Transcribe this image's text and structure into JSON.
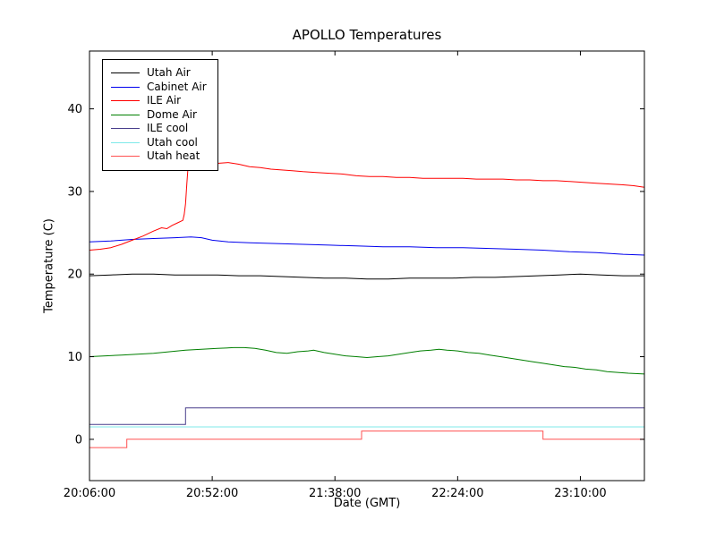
{
  "chart_data": {
    "type": "line",
    "title": "APOLLO Temperatures",
    "xlabel": "Date (GMT)",
    "ylabel": "Temperature (C)",
    "x_unit": "minutes after 20:06:00",
    "xlim": [
      0,
      208
    ],
    "ylim": [
      -5,
      47
    ],
    "grid": false,
    "legend_position": "upper left",
    "xticks": [
      {
        "value": 0,
        "label": "20:06:00"
      },
      {
        "value": 46,
        "label": "20:52:00"
      },
      {
        "value": 92,
        "label": "21:38:00"
      },
      {
        "value": 138,
        "label": "22:24:00"
      },
      {
        "value": 184,
        "label": "23:10:00"
      }
    ],
    "yticks": [
      {
        "value": 0,
        "label": "0"
      },
      {
        "value": 10,
        "label": "10"
      },
      {
        "value": 20,
        "label": "20"
      },
      {
        "value": 30,
        "label": "30"
      },
      {
        "value": 40,
        "label": "40"
      }
    ],
    "series": [
      {
        "name": "Utah Air",
        "color": "#000000",
        "points": [
          [
            0,
            19.8
          ],
          [
            8,
            19.9
          ],
          [
            16,
            20
          ],
          [
            24,
            20
          ],
          [
            32,
            19.9
          ],
          [
            40,
            19.9
          ],
          [
            48,
            19.9
          ],
          [
            56,
            19.8
          ],
          [
            64,
            19.8
          ],
          [
            72,
            19.7
          ],
          [
            80,
            19.6
          ],
          [
            88,
            19.5
          ],
          [
            96,
            19.5
          ],
          [
            104,
            19.4
          ],
          [
            112,
            19.4
          ],
          [
            120,
            19.5
          ],
          [
            128,
            19.5
          ],
          [
            136,
            19.5
          ],
          [
            144,
            19.6
          ],
          [
            152,
            19.6
          ],
          [
            160,
            19.7
          ],
          [
            168,
            19.8
          ],
          [
            176,
            19.9
          ],
          [
            184,
            20
          ],
          [
            192,
            19.9
          ],
          [
            200,
            19.8
          ],
          [
            208,
            19.8
          ]
        ]
      },
      {
        "name": "Cabinet Air",
        "color": "#0000ee",
        "points": [
          [
            0,
            23.9
          ],
          [
            8,
            24
          ],
          [
            16,
            24.2
          ],
          [
            24,
            24.3
          ],
          [
            32,
            24.4
          ],
          [
            38,
            24.5
          ],
          [
            42,
            24.4
          ],
          [
            46,
            24.1
          ],
          [
            52,
            23.9
          ],
          [
            60,
            23.8
          ],
          [
            70,
            23.7
          ],
          [
            80,
            23.6
          ],
          [
            90,
            23.5
          ],
          [
            100,
            23.4
          ],
          [
            110,
            23.3
          ],
          [
            120,
            23.3
          ],
          [
            130,
            23.2
          ],
          [
            140,
            23.2
          ],
          [
            150,
            23.1
          ],
          [
            160,
            23
          ],
          [
            170,
            22.9
          ],
          [
            180,
            22.7
          ],
          [
            190,
            22.6
          ],
          [
            200,
            22.4
          ],
          [
            208,
            22.3
          ]
        ]
      },
      {
        "name": "ILE Air",
        "color": "#ff0000",
        "points": [
          [
            0,
            22.9
          ],
          [
            4,
            23
          ],
          [
            8,
            23.2
          ],
          [
            12,
            23.6
          ],
          [
            16,
            24.1
          ],
          [
            20,
            24.6
          ],
          [
            24,
            25.2
          ],
          [
            27,
            25.6
          ],
          [
            29,
            25.5
          ],
          [
            31,
            25.9
          ],
          [
            33,
            26.2
          ],
          [
            35,
            26.5
          ],
          [
            35.5,
            27.2
          ],
          [
            36,
            28.5
          ],
          [
            36.5,
            31
          ],
          [
            37,
            33.2
          ],
          [
            38,
            34
          ],
          [
            40,
            33.7
          ],
          [
            44,
            33.5
          ],
          [
            48,
            33.4
          ],
          [
            52,
            33.5
          ],
          [
            56,
            33.3
          ],
          [
            60,
            33
          ],
          [
            64,
            32.9
          ],
          [
            68,
            32.7
          ],
          [
            72,
            32.6
          ],
          [
            76,
            32.5
          ],
          [
            80,
            32.4
          ],
          [
            85,
            32.3
          ],
          [
            90,
            32.2
          ],
          [
            95,
            32.1
          ],
          [
            100,
            31.9
          ],
          [
            105,
            31.8
          ],
          [
            110,
            31.8
          ],
          [
            115,
            31.7
          ],
          [
            120,
            31.7
          ],
          [
            125,
            31.6
          ],
          [
            130,
            31.6
          ],
          [
            135,
            31.6
          ],
          [
            140,
            31.6
          ],
          [
            145,
            31.5
          ],
          [
            150,
            31.5
          ],
          [
            155,
            31.5
          ],
          [
            160,
            31.4
          ],
          [
            165,
            31.4
          ],
          [
            170,
            31.3
          ],
          [
            175,
            31.3
          ],
          [
            180,
            31.2
          ],
          [
            185,
            31.1
          ],
          [
            190,
            31
          ],
          [
            195,
            30.9
          ],
          [
            200,
            30.8
          ],
          [
            204,
            30.7
          ],
          [
            208,
            30.5
          ]
        ]
      },
      {
        "name": "Dome Air",
        "color": "#007f00",
        "points": [
          [
            0,
            10
          ],
          [
            6,
            10.1
          ],
          [
            12,
            10.2
          ],
          [
            18,
            10.3
          ],
          [
            24,
            10.4
          ],
          [
            30,
            10.6
          ],
          [
            36,
            10.8
          ],
          [
            42,
            10.9
          ],
          [
            48,
            11
          ],
          [
            54,
            11.1
          ],
          [
            58,
            11.1
          ],
          [
            62,
            11
          ],
          [
            66,
            10.8
          ],
          [
            70,
            10.5
          ],
          [
            74,
            10.4
          ],
          [
            78,
            10.6
          ],
          [
            82,
            10.7
          ],
          [
            84,
            10.8
          ],
          [
            88,
            10.5
          ],
          [
            92,
            10.3
          ],
          [
            96,
            10.1
          ],
          [
            100,
            10
          ],
          [
            104,
            9.9
          ],
          [
            108,
            10
          ],
          [
            112,
            10.1
          ],
          [
            116,
            10.3
          ],
          [
            120,
            10.5
          ],
          [
            124,
            10.7
          ],
          [
            128,
            10.8
          ],
          [
            131,
            10.9
          ],
          [
            134,
            10.8
          ],
          [
            138,
            10.7
          ],
          [
            142,
            10.5
          ],
          [
            146,
            10.4
          ],
          [
            150,
            10.2
          ],
          [
            154,
            10
          ],
          [
            158,
            9.8
          ],
          [
            162,
            9.6
          ],
          [
            166,
            9.4
          ],
          [
            170,
            9.2
          ],
          [
            174,
            9
          ],
          [
            178,
            8.8
          ],
          [
            182,
            8.7
          ],
          [
            186,
            8.5
          ],
          [
            190,
            8.4
          ],
          [
            194,
            8.2
          ],
          [
            198,
            8.1
          ],
          [
            202,
            8
          ],
          [
            208,
            7.9
          ]
        ]
      },
      {
        "name": "ILE cool",
        "color": "#483d8b",
        "points": [
          [
            0,
            1.8
          ],
          [
            36,
            1.8
          ],
          [
            36,
            3.8
          ],
          [
            208,
            3.8
          ]
        ]
      },
      {
        "name": "Utah cool",
        "color": "#7fe9e9",
        "points": [
          [
            0,
            1.5
          ],
          [
            208,
            1.5
          ]
        ]
      },
      {
        "name": "Utah heat",
        "color": "#ff5050",
        "points": [
          [
            0,
            -1
          ],
          [
            14,
            -1
          ],
          [
            14,
            0
          ],
          [
            102,
            0
          ],
          [
            102,
            1
          ],
          [
            170,
            1
          ],
          [
            170,
            0
          ],
          [
            208,
            0
          ]
        ]
      }
    ]
  }
}
